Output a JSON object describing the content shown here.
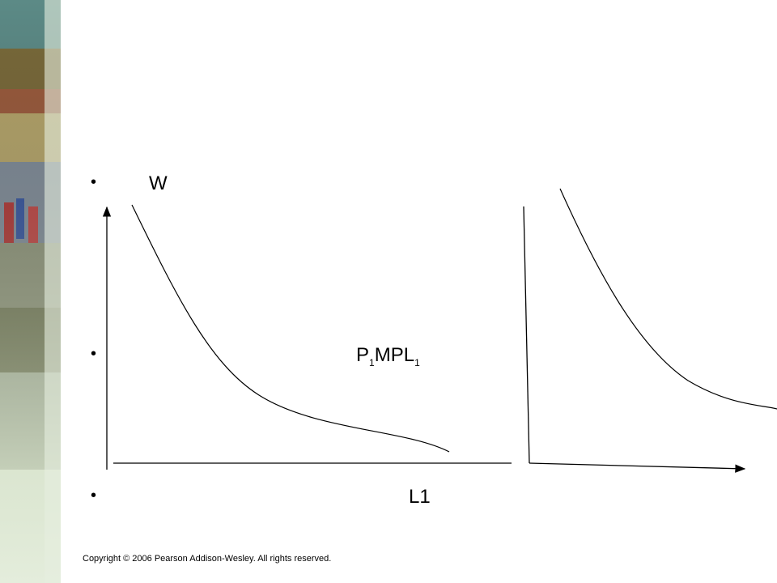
{
  "slide": {
    "bullets": [
      [
        {
          "text": "W"
        }
      ],
      [
        {
          "text": "P"
        },
        {
          "text": "1",
          "subscript": true
        },
        {
          "text": "MPL"
        },
        {
          "text": "1",
          "subscript": true
        }
      ],
      [
        {
          "text": "L1"
        }
      ]
    ],
    "footer": "Copyright © 2006 Pearson Addison-Wesley. All rights reserved."
  }
}
